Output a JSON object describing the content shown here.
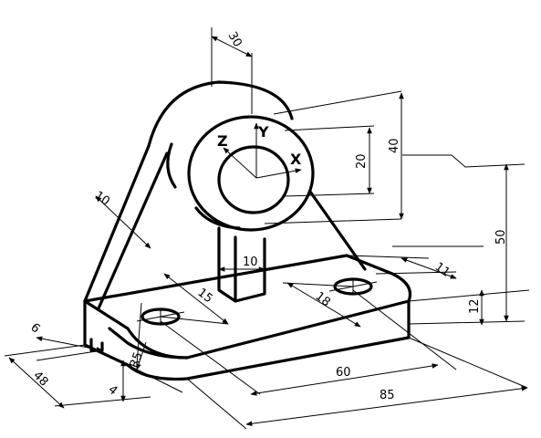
{
  "dimensions": {
    "d30": "30",
    "d40": "40",
    "d20": "20",
    "d50": "50",
    "d10_rib": "10",
    "d10_slot": "10",
    "d15": "15",
    "d18": "18",
    "d11": "11",
    "d12": "12",
    "d6": "6",
    "d48": "48",
    "d4": "4",
    "r5": "R5",
    "d60": "60",
    "d85": "85"
  },
  "axes": {
    "x": "X",
    "y": "Y",
    "z": "Z"
  }
}
